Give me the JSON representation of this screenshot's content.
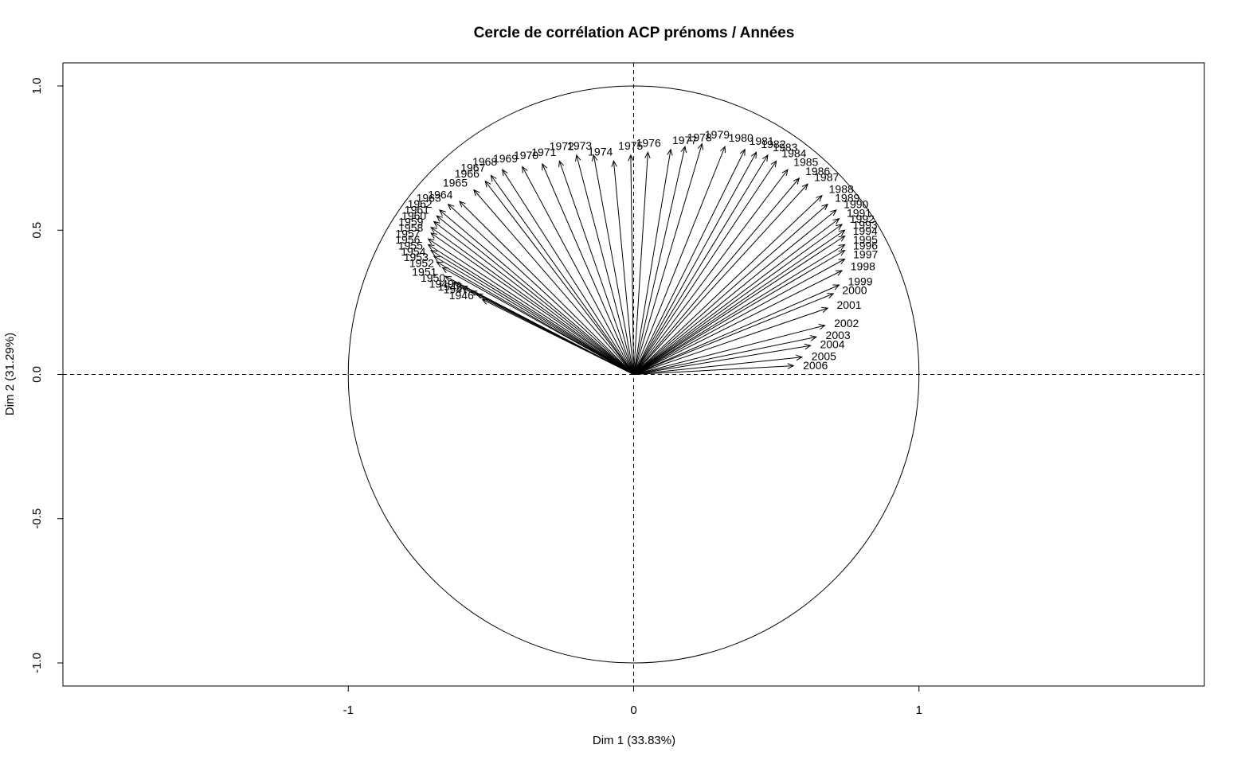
{
  "chart_data": {
    "type": "scatter",
    "title": "Cercle de corrélation ACP prénoms / Années",
    "xlabel": "Dim 1 (33.83%)",
    "ylabel": "Dim 2 (31.29%)",
    "xlim": [
      -2.0,
      2.0
    ],
    "ylim": [
      -1.08,
      1.08
    ],
    "x_ticks": [
      -1,
      0,
      1
    ],
    "x_tick_labels": [
      "-1",
      "0",
      "1"
    ],
    "y_ticks": [
      -1.0,
      -0.5,
      0.0,
      0.5,
      1.0
    ],
    "y_tick_labels": [
      "-1.0",
      "-0.5",
      "0.0",
      "0.5",
      "1.0"
    ],
    "unit_circle": true,
    "reference_lines": "dashed at x=0 and y=0",
    "grid": false,
    "vectors": [
      {
        "label": "1946",
        "x": -0.53,
        "y": 0.26
      },
      {
        "label": "1947",
        "x": -0.55,
        "y": 0.28
      },
      {
        "label": "1948",
        "x": -0.57,
        "y": 0.29
      },
      {
        "label": "1949",
        "x": -0.6,
        "y": 0.3
      },
      {
        "label": "1950",
        "x": -0.63,
        "y": 0.32
      },
      {
        "label": "1951",
        "x": -0.66,
        "y": 0.34
      },
      {
        "label": "1952",
        "x": -0.67,
        "y": 0.37
      },
      {
        "label": "1953",
        "x": -0.69,
        "y": 0.39
      },
      {
        "label": "1954",
        "x": -0.7,
        "y": 0.41
      },
      {
        "label": "1955",
        "x": -0.71,
        "y": 0.43
      },
      {
        "label": "1956",
        "x": -0.72,
        "y": 0.45
      },
      {
        "label": "1957",
        "x": -0.72,
        "y": 0.47
      },
      {
        "label": "1958",
        "x": -0.71,
        "y": 0.49
      },
      {
        "label": "1959",
        "x": -0.71,
        "y": 0.51
      },
      {
        "label": "1960",
        "x": -0.7,
        "y": 0.53
      },
      {
        "label": "1961",
        "x": -0.69,
        "y": 0.55
      },
      {
        "label": "1962",
        "x": -0.68,
        "y": 0.57
      },
      {
        "label": "1963",
        "x": -0.65,
        "y": 0.59
      },
      {
        "label": "1964",
        "x": -0.61,
        "y": 0.6
      },
      {
        "label": "1965",
        "x": -0.56,
        "y": 0.64
      },
      {
        "label": "1966",
        "x": -0.52,
        "y": 0.67
      },
      {
        "label": "1967",
        "x": -0.5,
        "y": 0.69
      },
      {
        "label": "1968",
        "x": -0.46,
        "y": 0.71
      },
      {
        "label": "1969",
        "x": -0.39,
        "y": 0.72
      },
      {
        "label": "1970",
        "x": -0.32,
        "y": 0.73
      },
      {
        "label": "1971",
        "x": -0.26,
        "y": 0.74
      },
      {
        "label": "1972",
        "x": -0.2,
        "y": 0.76
      },
      {
        "label": "1973",
        "x": -0.14,
        "y": 0.76
      },
      {
        "label": "1974",
        "x": -0.07,
        "y": 0.74
      },
      {
        "label": "1975",
        "x": -0.01,
        "y": 0.76
      },
      {
        "label": "1976",
        "x": 0.05,
        "y": 0.77
      },
      {
        "label": "1977",
        "x": 0.13,
        "y": 0.78
      },
      {
        "label": "1978",
        "x": 0.18,
        "y": 0.79
      },
      {
        "label": "1979",
        "x": 0.24,
        "y": 0.8
      },
      {
        "label": "1980",
        "x": 0.32,
        "y": 0.79
      },
      {
        "label": "1981",
        "x": 0.39,
        "y": 0.78
      },
      {
        "label": "1982",
        "x": 0.43,
        "y": 0.77
      },
      {
        "label": "1983",
        "x": 0.47,
        "y": 0.76
      },
      {
        "label": "1984",
        "x": 0.5,
        "y": 0.74
      },
      {
        "label": "1985",
        "x": 0.54,
        "y": 0.71
      },
      {
        "label": "1986",
        "x": 0.58,
        "y": 0.68
      },
      {
        "label": "1987",
        "x": 0.61,
        "y": 0.66
      },
      {
        "label": "1988",
        "x": 0.66,
        "y": 0.62
      },
      {
        "label": "1989",
        "x": 0.68,
        "y": 0.59
      },
      {
        "label": "1990",
        "x": 0.71,
        "y": 0.57
      },
      {
        "label": "1991",
        "x": 0.72,
        "y": 0.54
      },
      {
        "label": "1992",
        "x": 0.73,
        "y": 0.52
      },
      {
        "label": "1993",
        "x": 0.74,
        "y": 0.5
      },
      {
        "label": "1994",
        "x": 0.74,
        "y": 0.48
      },
      {
        "label": "1995",
        "x": 0.74,
        "y": 0.45
      },
      {
        "label": "1996",
        "x": 0.74,
        "y": 0.43
      },
      {
        "label": "1997",
        "x": 0.74,
        "y": 0.4
      },
      {
        "label": "1998",
        "x": 0.73,
        "y": 0.36
      },
      {
        "label": "1999",
        "x": 0.72,
        "y": 0.31
      },
      {
        "label": "2000",
        "x": 0.7,
        "y": 0.28
      },
      {
        "label": "2001",
        "x": 0.68,
        "y": 0.23
      },
      {
        "label": "2002",
        "x": 0.67,
        "y": 0.17
      },
      {
        "label": "2003",
        "x": 0.64,
        "y": 0.13
      },
      {
        "label": "2004",
        "x": 0.62,
        "y": 0.1
      },
      {
        "label": "2005",
        "x": 0.59,
        "y": 0.06
      },
      {
        "label": "2006",
        "x": 0.56,
        "y": 0.03
      }
    ]
  }
}
